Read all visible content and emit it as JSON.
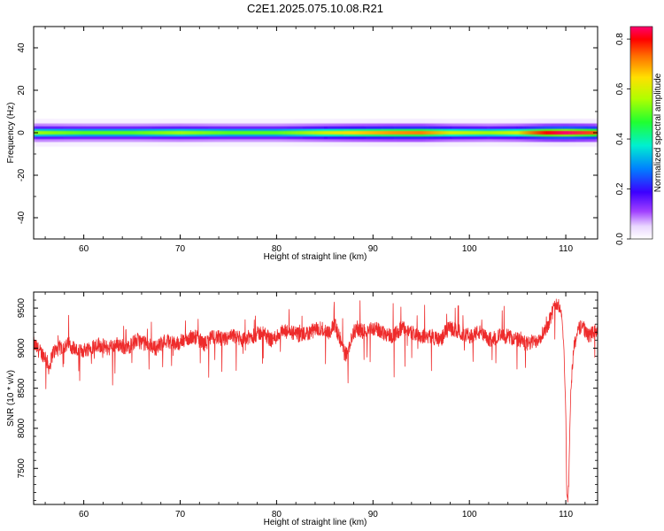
{
  "title": "C2E1.2025.075.10.08.R21",
  "chart_data": [
    {
      "type": "heatmap",
      "name": "spectrogram",
      "xlabel": "Height of straight line (km)",
      "ylabel": "Frequency (Hz)",
      "xlim": [
        54.8,
        113.3
      ],
      "ylim": [
        -50,
        50
      ],
      "xticks": [
        60,
        70,
        80,
        90,
        100,
        110
      ],
      "yticks": [
        -40,
        -20,
        0,
        20,
        40
      ],
      "grid": false,
      "band_center_hz": 0,
      "band_halfwidth_hz": 3,
      "colorbar": {
        "label": "Normalized spectral amplitude",
        "range": [
          0.0,
          0.85
        ],
        "ticks": [
          0.0,
          0.2,
          0.4,
          0.6,
          0.8
        ]
      },
      "peak_profile": [
        {
          "x": 55,
          "peak": 0.55
        },
        {
          "x": 60,
          "peak": 0.5
        },
        {
          "x": 65,
          "peak": 0.5
        },
        {
          "x": 70,
          "peak": 0.55
        },
        {
          "x": 75,
          "peak": 0.5
        },
        {
          "x": 80,
          "peak": 0.5
        },
        {
          "x": 85,
          "peak": 0.6
        },
        {
          "x": 88,
          "peak": 0.65
        },
        {
          "x": 92,
          "peak": 0.7
        },
        {
          "x": 95,
          "peak": 0.72
        },
        {
          "x": 98,
          "peak": 0.6
        },
        {
          "x": 102,
          "peak": 0.55
        },
        {
          "x": 105,
          "peak": 0.6
        },
        {
          "x": 108,
          "peak": 0.8
        },
        {
          "x": 110,
          "peak": 0.85
        },
        {
          "x": 113,
          "peak": 0.75
        }
      ]
    },
    {
      "type": "line",
      "name": "snr",
      "xlabel": "Height of straight line (km)",
      "ylabel": "SNR (10 * v/v)",
      "xlim": [
        54.8,
        113.3
      ],
      "ylim": [
        7050,
        9700
      ],
      "xticks": [
        60,
        70,
        80,
        90,
        100,
        110
      ],
      "yticks": [
        7500,
        8000,
        8500,
        9000,
        9500
      ],
      "grid": false,
      "color": "#ee2b2b",
      "series": [
        {
          "x": [
            54.8,
            55.5,
            56.0,
            56.4,
            56.8,
            57.5,
            58.5,
            59.5,
            60.5,
            61.5,
            62.5,
            63.5,
            64.5,
            65.5,
            66.5,
            67.5,
            68.5,
            69.5,
            70.5,
            71.5,
            72.5,
            73.5,
            74.5,
            75.5,
            76.5,
            77.5,
            78.5,
            79.5,
            80.5,
            81.5,
            82.5,
            83.5,
            84.5,
            85.5,
            86.0,
            86.5,
            87.0,
            87.4,
            87.8,
            88.3,
            89.0,
            90.0,
            91.0,
            92.0,
            93.0,
            94.0,
            95.0,
            96.0,
            97.0,
            97.5,
            98.0,
            99.0,
            100.0,
            101.0,
            102.0,
            103.0,
            104.0,
            105.0,
            106.0,
            107.0,
            108.0,
            108.6,
            109.0,
            109.4,
            109.6,
            109.8,
            110.0,
            110.1,
            110.2,
            110.3,
            110.5,
            110.8,
            111.2,
            111.7,
            112.3,
            113.0,
            113.3
          ],
          "values": [
            9050,
            8950,
            8900,
            8750,
            8950,
            9000,
            9050,
            8950,
            9000,
            9050,
            9000,
            9050,
            9000,
            9100,
            9050,
            9000,
            9100,
            9050,
            9100,
            9150,
            9050,
            9150,
            9100,
            9150,
            9100,
            9150,
            9200,
            9100,
            9200,
            9200,
            9150,
            9200,
            9250,
            9200,
            9300,
            9150,
            8950,
            8900,
            9150,
            9250,
            9200,
            9250,
            9200,
            9150,
            9250,
            9200,
            9150,
            9150,
            9100,
            9200,
            9250,
            9200,
            9150,
            9200,
            9100,
            9150,
            9150,
            9100,
            9050,
            9100,
            9250,
            9450,
            9550,
            9500,
            9400,
            9000,
            8200,
            7200,
            7100,
            7300,
            8400,
            9000,
            9200,
            9300,
            9150,
            9200,
            9250
          ]
        }
      ]
    }
  ]
}
